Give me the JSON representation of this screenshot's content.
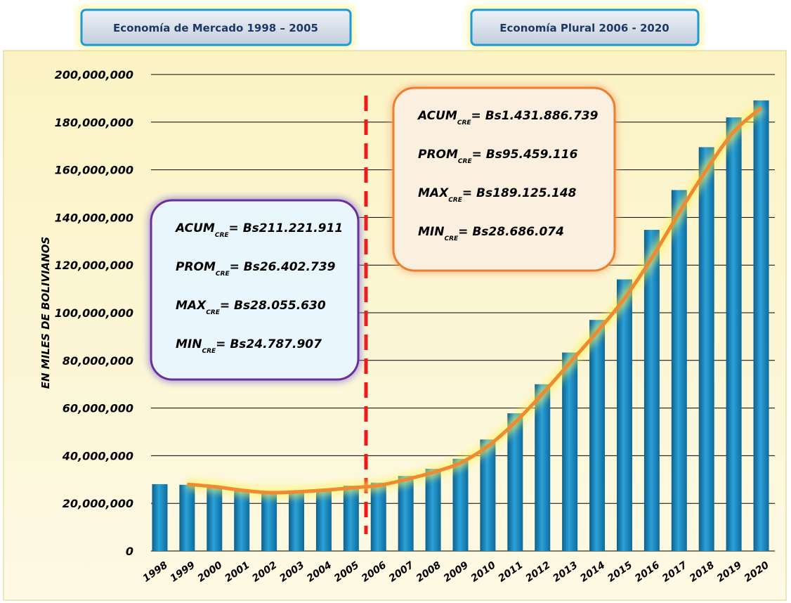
{
  "chart_data": {
    "type": "bar",
    "periods": [
      "Economía de Mercado 1998 – 2005",
      "Economía Plural 2006 - 2020"
    ],
    "y_label": "EN MILES DE BOLIVIANOS",
    "categories": [
      "1998",
      "1999",
      "2000",
      "2001",
      "2002",
      "2003",
      "2004",
      "2005",
      "2006",
      "2007",
      "2008",
      "2009",
      "2010",
      "2011",
      "2012",
      "2013",
      "2014",
      "2015",
      "2016",
      "2017",
      "2018",
      "2019",
      "2020"
    ],
    "values": [
      28055630,
      27800000,
      26900000,
      25400000,
      24787907,
      25000000,
      25900000,
      27400000,
      28686074,
      31500000,
      34500000,
      38700000,
      46800000,
      57800000,
      70000000,
      83300000,
      97000000,
      114000000,
      134800000,
      151500000,
      169500000,
      182000000,
      189125148
    ],
    "trend_values": [
      null,
      28000000,
      27000000,
      25500000,
      24500000,
      24800000,
      25500000,
      26500000,
      27500000,
      30000000,
      33000000,
      37000000,
      44000000,
      54000000,
      66000000,
      79000000,
      92000000,
      106000000,
      123000000,
      142000000,
      160000000,
      176000000,
      186000000
    ],
    "color": "#1b8fc4",
    "trend_color": "#f08a30",
    "ylim": [
      0,
      200000000
    ],
    "yticks": [
      0,
      {
        "value": 20000000,
        "label": "20,000,000"
      },
      {
        "value": 40000000,
        "label": "40,000,000"
      },
      {
        "value": 60000000,
        "label": "60,000,000"
      },
      {
        "value": 80000000,
        "label": "80,000,000"
      },
      {
        "value": 100000000,
        "label": "100,000,000"
      },
      {
        "value": 120000000,
        "label": "120,000,000"
      },
      {
        "value": 140000000,
        "label": "140,000,000"
      },
      {
        "value": 160000000,
        "label": "160,000,000"
      },
      {
        "value": 180000000,
        "label": "180,000,000"
      },
      {
        "value": 200000000,
        "label": "200,000,000"
      }
    ],
    "grid": true,
    "annotations": [
      {
        "lines": [
          {
            "label": "ACUM",
            "sub": "CRE",
            "text": "= Bs211.221.911"
          },
          {
            "label": "PROM",
            "sub": "CRE",
            "text": "= Bs26.402.739"
          },
          {
            "label": "MAX",
            "sub": "CRE",
            "text": "= Bs28.055.630"
          },
          {
            "label": "MIN",
            "sub": "CRE",
            "text": "= Bs24.787.907"
          }
        ]
      },
      {
        "lines": [
          {
            "label": "ACUM",
            "sub": "CRE",
            "text": "= Bs1.431.886.739"
          },
          {
            "label": "PROM",
            "sub": "CRE",
            "text": "= Bs95.459.116"
          },
          {
            "label": "MAX",
            "sub": "CRE",
            "text": "= Bs189.125.148"
          },
          {
            "label": "MIN",
            "sub": "CRE",
            "text": "= Bs28.686.074"
          }
        ]
      }
    ]
  }
}
